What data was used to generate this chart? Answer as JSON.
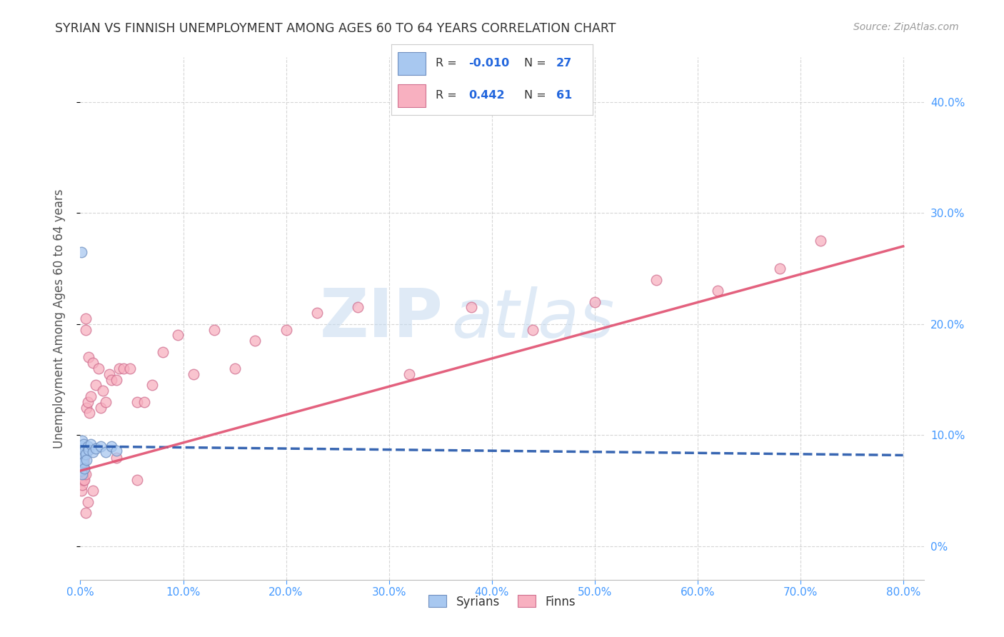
{
  "title": "SYRIAN VS FINNISH UNEMPLOYMENT AMONG AGES 60 TO 64 YEARS CORRELATION CHART",
  "source": "Source: ZipAtlas.com",
  "ylabel": "Unemployment Among Ages 60 to 64 years",
  "xlim": [
    0.0,
    0.82
  ],
  "ylim": [
    -0.03,
    0.44
  ],
  "xticks": [
    0.0,
    0.1,
    0.2,
    0.3,
    0.4,
    0.5,
    0.6,
    0.7,
    0.8
  ],
  "yticks": [
    0.0,
    0.1,
    0.2,
    0.3,
    0.4
  ],
  "syrian_color": "#a8c8f0",
  "syrian_edge": "#7090c0",
  "finn_color": "#f8b0c0",
  "finn_edge": "#d07090",
  "syrian_R": -0.01,
  "syrian_N": 27,
  "finn_R": 0.442,
  "finn_N": 61,
  "watermark_zip": "ZIP",
  "watermark_atlas": "atlas",
  "background_color": "#ffffff",
  "grid_color": "#cccccc",
  "title_color": "#333333",
  "tick_color": "#4499ff",
  "legend_R_color": "#2266dd",
  "legend_N_color": "#2266dd",
  "syrian_line_color": "#2255aa",
  "finn_line_color": "#e05070",
  "syrians_x": [
    0.001,
    0.001,
    0.001,
    0.001,
    0.001,
    0.002,
    0.002,
    0.002,
    0.002,
    0.002,
    0.003,
    0.003,
    0.003,
    0.004,
    0.004,
    0.005,
    0.006,
    0.007,
    0.008,
    0.01,
    0.012,
    0.015,
    0.02,
    0.025,
    0.03,
    0.035,
    0.001
  ],
  "syrians_y": [
    0.068,
    0.078,
    0.085,
    0.09,
    0.072,
    0.08,
    0.088,
    0.095,
    0.075,
    0.065,
    0.082,
    0.092,
    0.076,
    0.086,
    0.07,
    0.083,
    0.078,
    0.09,
    0.087,
    0.092,
    0.085,
    0.088,
    0.09,
    0.085,
    0.09,
    0.086,
    0.265
  ],
  "finns_x": [
    0.001,
    0.001,
    0.001,
    0.001,
    0.001,
    0.002,
    0.002,
    0.002,
    0.002,
    0.003,
    0.003,
    0.003,
    0.003,
    0.004,
    0.004,
    0.004,
    0.005,
    0.005,
    0.005,
    0.006,
    0.007,
    0.008,
    0.009,
    0.01,
    0.012,
    0.015,
    0.018,
    0.02,
    0.022,
    0.025,
    0.028,
    0.03,
    0.035,
    0.038,
    0.042,
    0.048,
    0.055,
    0.062,
    0.07,
    0.08,
    0.095,
    0.11,
    0.13,
    0.15,
    0.17,
    0.2,
    0.23,
    0.27,
    0.32,
    0.38,
    0.44,
    0.5,
    0.56,
    0.62,
    0.68,
    0.72,
    0.005,
    0.007,
    0.012,
    0.035,
    0.055
  ],
  "finns_y": [
    0.07,
    0.06,
    0.075,
    0.05,
    0.08,
    0.065,
    0.055,
    0.075,
    0.085,
    0.065,
    0.07,
    0.075,
    0.06,
    0.08,
    0.07,
    0.06,
    0.195,
    0.205,
    0.065,
    0.125,
    0.13,
    0.17,
    0.12,
    0.135,
    0.165,
    0.145,
    0.16,
    0.125,
    0.14,
    0.13,
    0.155,
    0.15,
    0.15,
    0.16,
    0.16,
    0.16,
    0.13,
    0.13,
    0.145,
    0.175,
    0.19,
    0.155,
    0.195,
    0.16,
    0.185,
    0.195,
    0.21,
    0.215,
    0.155,
    0.215,
    0.195,
    0.22,
    0.24,
    0.23,
    0.25,
    0.275,
    0.03,
    0.04,
    0.05,
    0.08,
    0.06
  ],
  "syrian_trend_x": [
    0.0,
    0.8
  ],
  "syrian_trend_y": [
    0.09,
    0.082
  ],
  "finn_trend_x": [
    0.0,
    0.8
  ],
  "finn_trend_y": [
    0.068,
    0.27
  ]
}
